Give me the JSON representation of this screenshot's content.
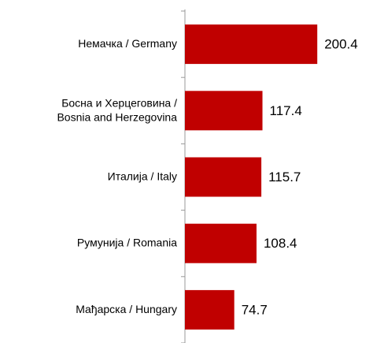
{
  "chart_data": {
    "type": "bar",
    "orientation": "horizontal",
    "categories": [
      "Немачка / Germany",
      "Босна и Херцеговина /\nBosnia and Herzegovina",
      "Италија / Italy",
      "Румунија / Romania",
      "Мађарска / Hungary"
    ],
    "values": [
      200.4,
      117.4,
      115.7,
      108.4,
      74.7
    ],
    "color": "#c00000",
    "xlim": [
      0,
      280
    ]
  }
}
